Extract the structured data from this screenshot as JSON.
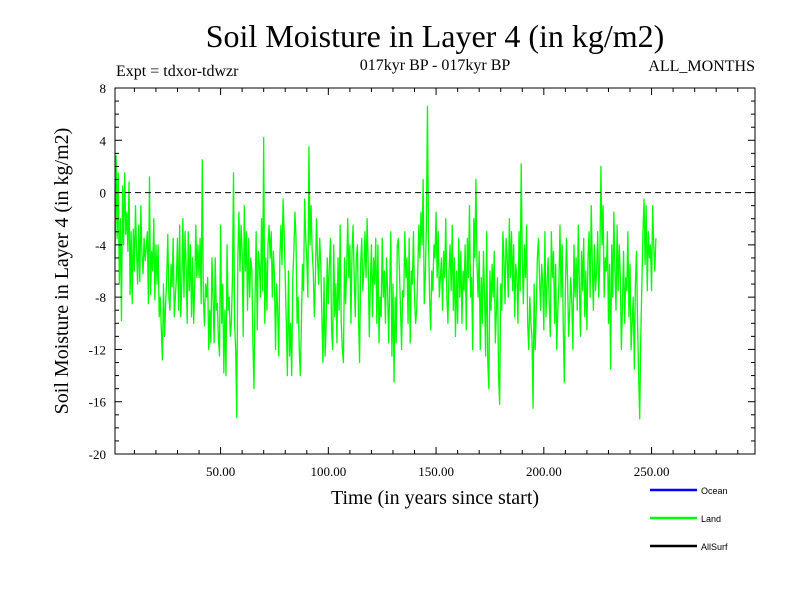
{
  "header": {
    "title": "Soil Moisture in Layer 4 (in kg/m2)",
    "experiment": "Expt = tdxor-tdwzr",
    "period": "017kyr BP - 017kyr BP",
    "months": "ALL_MONTHS"
  },
  "chart_data": {
    "type": "line",
    "xlabel": "Time (in years since start)",
    "ylabel": "Soil Moisture in Layer 4 (in kg/m2)",
    "xlim": [
      1,
      298
    ],
    "ylim": [
      -20,
      8
    ],
    "x_ticks": [
      50,
      100,
      150,
      200,
      250
    ],
    "x_tick_labels": [
      "50.00",
      "100.00",
      "150.00",
      "200.00",
      "250.00"
    ],
    "y_ticks": [
      8,
      4,
      0,
      -4,
      -8,
      -12,
      -16,
      -20
    ],
    "y_tick_labels": [
      "8",
      "4",
      "0",
      "-4",
      "-8",
      "-12",
      "-16",
      "-20"
    ],
    "reference_line": 0,
    "legend_position": "bottom-right",
    "series": [
      {
        "name": "Ocean",
        "color": "#0000ff",
        "values": []
      },
      {
        "name": "Land",
        "color": "#00ff00",
        "x_start": 1,
        "x_step": 0.5,
        "values": [
          -5.0,
          2.8,
          -3.5,
          1.5,
          -7.0,
          -2.0,
          -9.8,
          0.5,
          -4.0,
          1.5,
          -3.2,
          -1.5,
          -4.5,
          0.8,
          -7.8,
          -3.0,
          -8.5,
          -2.8,
          -6.0,
          -1.0,
          -4.5,
          -7.0,
          -2.5,
          -6.8,
          -1.0,
          -4.8,
          -6.2,
          -3.5,
          -5.2,
          -4.2,
          -3.0,
          -8.5,
          1.2,
          -7.8,
          -4.5,
          -6.0,
          -2.0,
          -8.2,
          -4.0,
          -7.0,
          -4.0,
          -9.5,
          -8.0,
          -10.5,
          -12.8,
          -7.0,
          -11.0,
          -8.5,
          -6.5,
          -3.2,
          -8.0,
          -9.0,
          -5.5,
          -7.2,
          -3.5,
          -9.5,
          -8.0,
          -6.5,
          -3.5,
          -9.0,
          -2.5,
          -9.5,
          -7.0,
          -2.0,
          -8.0,
          -3.0,
          -5.5,
          -10.0,
          -3.0,
          -7.5,
          -4.0,
          -9.5,
          -5.0,
          -10.0,
          -7.0,
          -2.5,
          -6.5,
          -4.0,
          -6.5,
          -3.5,
          -8.5,
          2.5,
          -8.0,
          -10.2,
          -7.0,
          -8.0,
          -6.5,
          -12.0,
          -9.0,
          -11.5,
          -5.0,
          -8.0,
          -11.5,
          -5.0,
          -9.0,
          -8.5,
          -11.2,
          -12.5,
          -2.5,
          -10.0,
          -7.0,
          -13.8,
          -9.0,
          -14.0,
          -4.0,
          -9.0,
          -8.0,
          -11.0,
          -10.0,
          -6.5,
          1.5,
          -10.0,
          -12.0,
          -17.2,
          -5.0,
          -1.5,
          -6.0,
          -2.5,
          -4.5,
          -11.0,
          -1.0,
          -6.0,
          -3.0,
          -9.0,
          -3.5,
          -8.0,
          -5.0,
          -6.0,
          -11.5,
          -15.0,
          -8.0,
          -3.0,
          -10.5,
          -4.5,
          -5.5,
          -8.0,
          -2.0,
          -7.5,
          4.2,
          -10.0,
          -5.0,
          -9.0,
          -4.0,
          -2.5,
          -5.0,
          -3.0,
          -8.0,
          -4.5,
          -6.5,
          -12.0,
          -7.0,
          -9.0,
          -12.5,
          -5.0,
          -2.5,
          -5.5,
          -0.5,
          -3.0,
          -6.5,
          -10.0,
          -14.0,
          -6.0,
          -12.5,
          -10.0,
          -14.0,
          -6.5,
          -4.5,
          -1.5,
          -3.5,
          -10.0,
          -8.0,
          -12.0,
          -14.0,
          -10.0,
          -5.5,
          -7.5,
          -0.5,
          -3.5,
          -5.0,
          -8.0,
          3.5,
          -4.0,
          -1.0,
          -4.5,
          -6.0,
          -9.5,
          -6.5,
          -2.0,
          -5.0,
          -7.0,
          -3.5,
          -5.5,
          -9.5,
          -13.0,
          -6.5,
          -12.5,
          -10.0,
          -5.0,
          -8.5,
          -5.5,
          -3.5,
          -10.5,
          -12.0,
          -4.0,
          -9.5,
          -7.0,
          -11.5,
          -5.0,
          -9.0,
          -2.5,
          -10.0,
          -12.0,
          -13.0,
          -5.0,
          -8.5,
          -6.0,
          -2.0,
          -6.5,
          -4.0,
          -10.0,
          -4.5,
          -2.5,
          -6.5,
          -9.5,
          -5.0,
          -4.0,
          -9.5,
          -13.0,
          -5.5,
          -3.5,
          -7.5,
          -6.0,
          -3.0,
          -6.5,
          -2.0,
          -5.5,
          -11.0,
          -7.0,
          -4.0,
          -9.5,
          -5.0,
          -7.0,
          -3.5,
          -10.0,
          -4.0,
          -11.5,
          -8.0,
          -9.5,
          -3.5,
          -8.0,
          -6.0,
          -10.0,
          -5.0,
          -7.5,
          -11.5,
          -7.0,
          -3.0,
          -12.5,
          -7.0,
          -14.5,
          -8.0,
          -11.5,
          -4.0,
          -3.5,
          -6.0,
          -9.0,
          -12.0,
          -7.5,
          -8.0,
          -3.0,
          -6.5,
          -5.0,
          -10.0,
          -3.5,
          -11.5,
          -6.0,
          -7.0,
          -3.0,
          -8.0,
          -10.0,
          -9.0,
          -6.0,
          -2.5,
          -5.0,
          -1.5,
          -4.0,
          1.0,
          -8.5,
          -6.5,
          -2.5,
          6.6,
          -3.5,
          -8.0,
          -10.5,
          -6.0,
          -7.5,
          -4.0,
          -5.0,
          -1.5,
          -6.5,
          -3.0,
          -8.0,
          -6.5,
          -5.0,
          -9.0,
          -4.5,
          -6.5,
          -2.0,
          -8.0,
          -10.0,
          -6.0,
          -4.0,
          -7.5,
          -2.5,
          -9.0,
          -5.0,
          -11.0,
          -6.0,
          -10.0,
          -3.5,
          -8.0,
          -4.5,
          -10.0,
          -6.0,
          -7.5,
          -4.0,
          -10.5,
          -3.5,
          -6.5,
          -1.0,
          -8.0,
          -6.5,
          -12.0,
          -2.0,
          -5.0,
          1.0,
          -5.5,
          -8.0,
          -4.5,
          -12.0,
          -6.5,
          -10.0,
          -4.5,
          -8.0,
          -12.5,
          -3.0,
          -13.0,
          -15.0,
          -6.0,
          -9.0,
          -5.5,
          -8.0,
          -4.5,
          -11.5,
          -9.0,
          -6.5,
          -14.0,
          -16.2,
          -7.0,
          -9.0,
          -3.0,
          -5.0,
          -8.5,
          -3.5,
          -5.0,
          -8.0,
          -2.0,
          -6.5,
          -3.0,
          -7.5,
          -4.0,
          -9.5,
          -5.5,
          -6.5,
          -10.0,
          -3.0,
          -7.5,
          2.2,
          -5.0,
          -8.5,
          -4.0,
          -6.5,
          -2.5,
          -10.0,
          -12.0,
          -8.0,
          -10.0,
          -11.0,
          -16.5,
          -7.0,
          -12.0,
          -9.0,
          -5.0,
          -3.5,
          -6.5,
          -9.0,
          -5.5,
          -7.0,
          -10.5,
          -3.0,
          -9.5,
          -7.0,
          -5.0,
          -8.5,
          -11.0,
          -3.0,
          -6.5,
          -4.5,
          -10.0,
          -5.5,
          -12.0,
          -9.0,
          -7.0,
          -2.5,
          -8.0,
          -4.0,
          -10.0,
          -14.5,
          -7.5,
          -3.5,
          -6.5,
          -11.0,
          -9.0,
          -6.5,
          -8.5,
          -12.0,
          -4.0,
          -8.0,
          -5.0,
          -9.0,
          -2.5,
          -7.0,
          -11.0,
          -4.5,
          -7.5,
          -3.5,
          -9.5,
          -6.0,
          -10.5,
          -5.0,
          -3.0,
          -8.0,
          -1.0,
          -5.5,
          -9.0,
          -4.0,
          -7.5,
          -6.0,
          -3.0,
          -8.0,
          -5.0,
          2.0,
          -4.0,
          -1.0,
          -8.0,
          -5.0,
          -6.0,
          -3.0,
          -10.0,
          -5.5,
          -13.5,
          -4.0,
          -8.0,
          -1.5,
          -6.0,
          -9.0,
          -2.5,
          -7.5,
          -4.0,
          -6.5,
          -12.0,
          -8.5,
          -4.5,
          -10.0,
          -6.5,
          -7.5,
          -3.0,
          -9.5,
          -5.5,
          -12.0,
          -10.0,
          -8.0,
          -13.5,
          -7.0,
          -4.5,
          -10.0,
          -14.0,
          -17.3,
          -11.0,
          -7.0,
          -3.0,
          -0.5,
          -5.5,
          -1.0,
          -7.5,
          -3.0,
          -5.0,
          -4.0,
          -7.5,
          -1.0,
          -4.0,
          -6.0,
          -3.5
        ]
      },
      {
        "name": "AllSurf",
        "color": "#000000",
        "values": []
      }
    ]
  }
}
